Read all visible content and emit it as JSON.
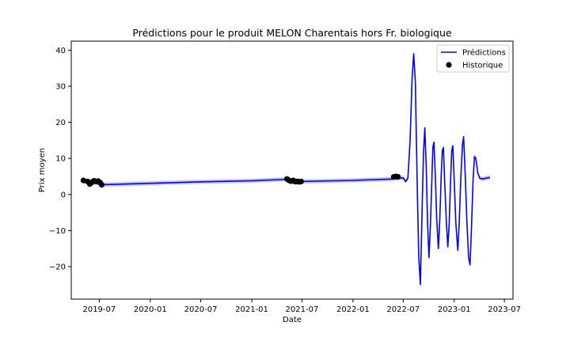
{
  "chart_data": {
    "type": "line",
    "title": "Prédictions pour le produit MELON Charentais hors Fr. biologique",
    "xlabel": "Date",
    "ylabel": "Prix moyen",
    "x_ticks": [
      "2019-07",
      "2020-01",
      "2020-07",
      "2021-01",
      "2021-07",
      "2022-01",
      "2022-07",
      "2023-01",
      "2023-07"
    ],
    "y_ticks": [
      -20,
      -10,
      0,
      10,
      20,
      30,
      40
    ],
    "xlim": [
      "2019-03-22",
      "2023-08-01"
    ],
    "ylim": [
      -29,
      42.5
    ],
    "grid": false,
    "legend": {
      "placement": "top-right",
      "entries": [
        {
          "label": "Prédictions",
          "marker": "line",
          "color": "#0000ff"
        },
        {
          "label": "Historique",
          "marker": "dot",
          "color": "#000000"
        }
      ]
    },
    "series": [
      {
        "name": "Prédictions",
        "kind": "line",
        "color": "#0000ff",
        "band_color": "#b3b3ff",
        "points": [
          [
            "2019-05-01",
            3.7
          ],
          [
            "2019-05-15",
            3.4
          ],
          [
            "2019-06-01",
            3.5
          ],
          [
            "2019-06-15",
            3.3
          ],
          [
            "2019-07-01",
            3.0
          ],
          [
            "2019-07-10",
            2.7
          ],
          [
            "2020-01-01",
            3.1
          ],
          [
            "2020-07-01",
            3.5
          ],
          [
            "2021-01-01",
            3.8
          ],
          [
            "2021-05-10",
            4.2
          ],
          [
            "2021-05-25",
            3.8
          ],
          [
            "2021-06-10",
            3.7
          ],
          [
            "2021-06-25",
            3.6
          ],
          [
            "2022-01-01",
            3.9
          ],
          [
            "2022-05-28",
            4.3
          ],
          [
            "2022-06-15",
            4.5
          ],
          [
            "2022-07-01",
            4.6
          ],
          [
            "2022-07-10",
            3.6
          ],
          [
            "2022-07-18",
            4.5
          ],
          [
            "2022-07-26",
            15
          ],
          [
            "2022-08-02",
            32
          ],
          [
            "2022-08-08",
            39
          ],
          [
            "2022-08-14",
            31
          ],
          [
            "2022-08-20",
            5
          ],
          [
            "2022-08-26",
            -17
          ],
          [
            "2022-09-01",
            -25
          ],
          [
            "2022-09-07",
            -5
          ],
          [
            "2022-09-12",
            11
          ],
          [
            "2022-09-17",
            18.5
          ],
          [
            "2022-09-22",
            8
          ],
          [
            "2022-09-27",
            -8
          ],
          [
            "2022-10-02",
            -17.5
          ],
          [
            "2022-10-07",
            -9
          ],
          [
            "2022-10-12",
            3
          ],
          [
            "2022-10-16",
            13
          ],
          [
            "2022-10-20",
            14.5
          ],
          [
            "2022-10-25",
            5
          ],
          [
            "2022-10-30",
            -7
          ],
          [
            "2022-11-05",
            -15
          ],
          [
            "2022-11-10",
            -7
          ],
          [
            "2022-11-15",
            5
          ],
          [
            "2022-11-19",
            12
          ],
          [
            "2022-11-23",
            13
          ],
          [
            "2022-11-28",
            3
          ],
          [
            "2022-12-04",
            -8
          ],
          [
            "2022-12-09",
            -14.5
          ],
          [
            "2022-12-14",
            -8
          ],
          [
            "2022-12-19",
            4
          ],
          [
            "2022-12-23",
            12
          ],
          [
            "2022-12-27",
            13.5
          ],
          [
            "2023-01-01",
            4
          ],
          [
            "2023-01-07",
            -8
          ],
          [
            "2023-01-14",
            -15.5
          ],
          [
            "2023-01-19",
            -8
          ],
          [
            "2023-01-25",
            5
          ],
          [
            "2023-01-31",
            14
          ],
          [
            "2023-02-04",
            16
          ],
          [
            "2023-02-10",
            5
          ],
          [
            "2023-02-16",
            -8
          ],
          [
            "2023-02-22",
            -17.5
          ],
          [
            "2023-02-27",
            -19.5
          ],
          [
            "2023-03-04",
            -10
          ],
          [
            "2023-03-10",
            4
          ],
          [
            "2023-03-15",
            10.5
          ],
          [
            "2023-03-20",
            10
          ],
          [
            "2023-03-27",
            6
          ],
          [
            "2023-04-03",
            4.5
          ],
          [
            "2023-04-15",
            4.3
          ],
          [
            "2023-05-01",
            4.6
          ],
          [
            "2023-05-10",
            4.7
          ]
        ]
      },
      {
        "name": "Historique",
        "kind": "scatter",
        "color": "#000000",
        "points": [
          [
            "2019-05-05",
            3.9
          ],
          [
            "2019-05-20",
            3.6
          ],
          [
            "2019-05-28",
            2.9
          ],
          [
            "2019-06-05",
            3.4
          ],
          [
            "2019-06-12",
            3.8
          ],
          [
            "2019-06-20",
            3.6
          ],
          [
            "2019-06-27",
            3.7
          ],
          [
            "2019-07-04",
            3.3
          ],
          [
            "2019-07-10",
            2.7
          ],
          [
            "2021-05-08",
            4.3
          ],
          [
            "2021-05-15",
            3.9
          ],
          [
            "2021-05-22",
            3.7
          ],
          [
            "2021-05-30",
            3.9
          ],
          [
            "2021-06-05",
            3.6
          ],
          [
            "2021-06-10",
            3.6
          ],
          [
            "2021-06-16",
            3.6
          ],
          [
            "2021-06-22",
            3.5
          ],
          [
            "2021-06-28",
            3.6
          ],
          [
            "2022-05-28",
            4.9
          ],
          [
            "2022-06-05",
            5.0
          ],
          [
            "2022-06-12",
            4.9
          ]
        ]
      }
    ]
  }
}
